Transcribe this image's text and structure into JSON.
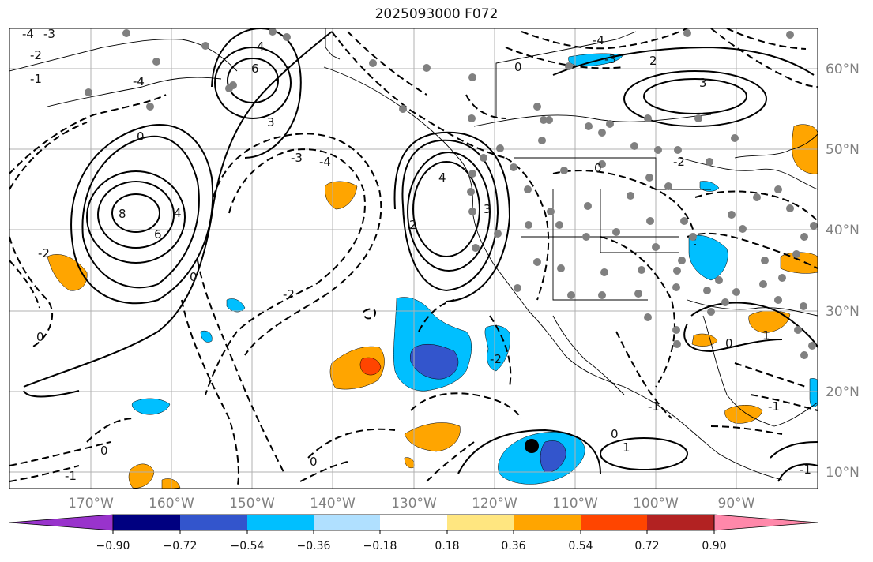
{
  "title": "2025093000 F072",
  "map": {
    "projection": "equirectangular",
    "lon_range": [
      -180,
      -80
    ],
    "lat_range": [
      8,
      65
    ],
    "lon_ticks": [
      "170°W",
      "160°W",
      "150°W",
      "140°W",
      "130°W",
      "120°W",
      "110°W",
      "100°W",
      "90°W"
    ],
    "lat_ticks": [
      "60°N",
      "50°N",
      "40°N",
      "30°N",
      "20°N",
      "10°N"
    ],
    "gridlines": true,
    "coastline_color": "#000000",
    "grid_color": "#b0b0b0",
    "station_marker_color": "#808080",
    "highlight_point_color": "#000000"
  },
  "contour_labels": [
    "-4",
    "-3",
    "-2",
    "-1",
    "0",
    "1",
    "2",
    "3",
    "4",
    "6",
    "8"
  ],
  "colorbar": {
    "extend": "both",
    "tick_labels": [
      "−0.90",
      "−0.72",
      "−0.54",
      "−0.36",
      "−0.18",
      "0.18",
      "0.36",
      "0.54",
      "0.72",
      "0.90"
    ],
    "colors": [
      "#9933cc",
      "#000080",
      "#3355cc",
      "#00bfff",
      "#b0e0ff",
      "#ffffff",
      "#ffe680",
      "#ffa500",
      "#ff4500",
      "#b22222",
      "#ff88aa"
    ]
  }
}
